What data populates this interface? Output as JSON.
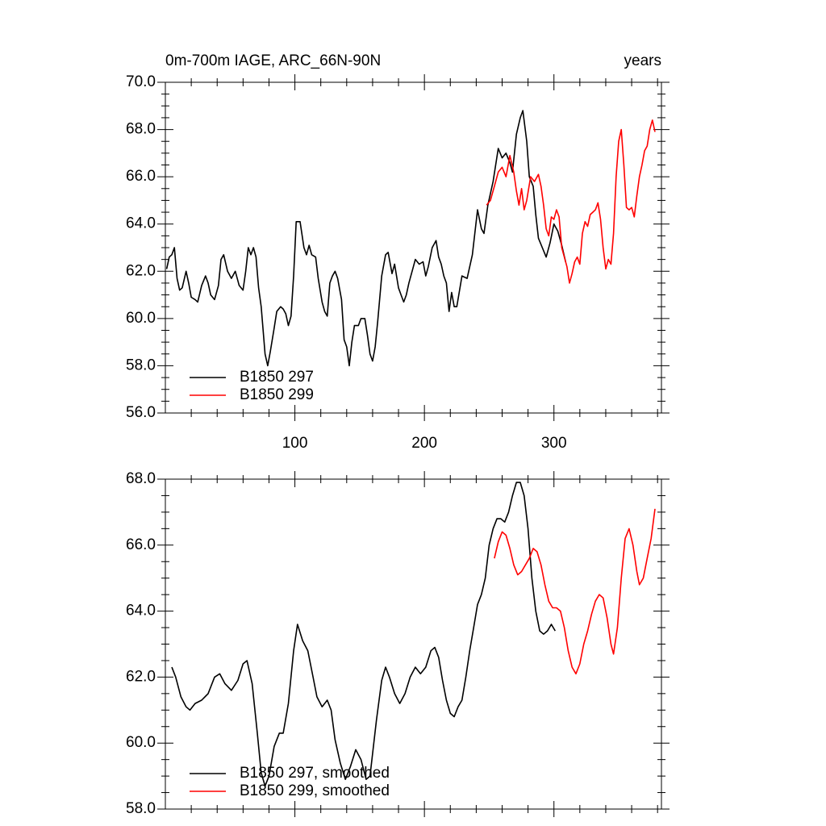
{
  "chart_data": [
    {
      "type": "line",
      "title": "0m-700m IAGE, ARC_66N-90N",
      "units": "years",
      "xlim": [
        0,
        383
      ],
      "xticks": [
        100,
        200,
        300
      ],
      "ylim": [
        56,
        70
      ],
      "yticks": [
        {
          "value": 56,
          "label": "56.0"
        },
        {
          "value": 58,
          "label": "58.0"
        },
        {
          "value": 60,
          "label": "60.0"
        },
        {
          "value": 62,
          "label": "62.0"
        },
        {
          "value": 64,
          "label": "64.0"
        },
        {
          "value": 66,
          "label": "66.0"
        },
        {
          "value": 68,
          "label": "68.0"
        },
        {
          "value": 70,
          "label": "70.0"
        }
      ],
      "legend": "lower left",
      "series": [
        {
          "name": "B1850 297",
          "color": "#000000",
          "x": [
            1,
            3,
            5,
            7,
            9,
            11,
            13,
            16,
            18,
            20,
            23,
            25,
            28,
            31,
            33,
            35,
            38,
            41,
            43,
            45,
            48,
            51,
            54,
            57,
            60,
            62,
            64,
            66,
            68,
            70,
            72,
            74,
            77,
            79,
            81,
            84,
            86,
            89,
            91,
            93,
            95,
            97,
            99,
            101,
            104,
            107,
            109,
            111,
            113,
            116,
            118,
            121,
            123,
            125,
            127,
            129,
            131,
            133,
            136,
            138,
            140,
            142,
            144,
            146,
            149,
            151,
            154,
            156,
            158,
            160,
            162,
            164,
            167,
            170,
            172,
            175,
            177,
            180,
            182,
            184,
            186,
            188,
            191,
            193,
            196,
            199,
            201,
            203,
            206,
            209,
            211,
            213,
            215,
            217,
            219,
            221,
            223,
            225,
            229,
            233,
            237,
            241,
            244,
            246,
            249,
            253,
            257,
            260,
            263,
            266,
            268,
            271,
            274,
            276,
            279,
            281,
            284,
            286,
            288,
            291,
            294,
            297,
            300,
            303,
            306,
            309
          ],
          "values": [
            62.1,
            62.6,
            62.7,
            63.0,
            61.7,
            61.2,
            61.3,
            62.0,
            61.5,
            60.9,
            60.8,
            60.7,
            61.4,
            61.8,
            61.5,
            61.0,
            60.8,
            61.4,
            62.5,
            62.7,
            62.0,
            61.7,
            62.0,
            61.4,
            61.2,
            62.0,
            63.0,
            62.7,
            63.0,
            62.6,
            61.3,
            60.5,
            58.5,
            58.0,
            58.6,
            59.6,
            60.3,
            60.5,
            60.4,
            60.2,
            59.7,
            60.1,
            61.8,
            64.1,
            64.1,
            63.0,
            62.7,
            63.1,
            62.7,
            62.6,
            61.7,
            60.7,
            60.3,
            60.1,
            61.5,
            61.8,
            62.0,
            61.7,
            60.8,
            59.1,
            58.8,
            58.0,
            59.0,
            59.7,
            59.7,
            60.0,
            60.0,
            59.3,
            58.5,
            58.2,
            58.8,
            59.9,
            61.8,
            62.7,
            62.8,
            61.9,
            62.3,
            61.3,
            61.0,
            60.7,
            61.0,
            61.5,
            62.1,
            62.5,
            62.3,
            62.4,
            61.8,
            62.2,
            63.0,
            63.3,
            62.6,
            62.3,
            61.8,
            61.5,
            60.3,
            61.1,
            60.5,
            60.5,
            61.8,
            61.7,
            62.7,
            64.6,
            63.8,
            63.6,
            64.8,
            65.8,
            67.2,
            66.8,
            67.0,
            66.6,
            66.2,
            67.8,
            68.5,
            68.8,
            67.5,
            66.0,
            65.6,
            64.4,
            63.4,
            63.0,
            62.6,
            63.2,
            64.0,
            63.7,
            63.1,
            62.4
          ]
        },
        {
          "name": "B1850 299",
          "color": "#ff0000",
          "x": [
            248,
            251,
            254,
            257,
            260,
            263,
            266,
            269,
            271,
            273,
            275,
            277,
            279,
            282,
            285,
            288,
            290,
            292,
            294,
            296,
            298,
            300,
            302,
            304,
            306,
            308,
            310,
            312,
            314,
            316,
            318,
            320,
            322,
            324,
            326,
            328,
            330,
            332,
            334,
            336,
            338,
            340,
            342,
            344,
            346,
            348,
            350,
            352,
            354,
            356,
            358,
            360,
            362,
            364,
            366,
            368,
            370,
            372,
            374,
            376,
            378
          ],
          "values": [
            64.8,
            65.0,
            65.6,
            66.2,
            66.4,
            66.0,
            66.9,
            66.2,
            65.4,
            64.8,
            65.5,
            64.6,
            65.0,
            66.0,
            65.8,
            66.1,
            65.6,
            64.8,
            63.8,
            63.5,
            64.3,
            64.2,
            64.6,
            64.3,
            63.0,
            62.6,
            62.2,
            61.5,
            61.9,
            62.4,
            62.6,
            62.3,
            63.6,
            64.1,
            63.9,
            64.4,
            64.5,
            64.6,
            64.9,
            64.2,
            63.0,
            62.1,
            62.5,
            62.3,
            63.6,
            66.0,
            67.5,
            68.0,
            66.5,
            64.7,
            64.6,
            64.7,
            64.3,
            65.2,
            66.0,
            66.5,
            67.1,
            67.3,
            68.0,
            68.4,
            67.9
          ]
        }
      ]
    },
    {
      "type": "line",
      "xlim": [
        0,
        383
      ],
      "ylim": [
        58,
        68
      ],
      "yticks": [
        {
          "value": 58,
          "label": "58.0"
        },
        {
          "value": 60,
          "label": "60.0"
        },
        {
          "value": 62,
          "label": "62.0"
        },
        {
          "value": 64,
          "label": "64.0"
        },
        {
          "value": 66,
          "label": "66.0"
        },
        {
          "value": 68,
          "label": "68.0"
        }
      ],
      "legend": "lower left",
      "series": [
        {
          "name": "B1850 297, smoothed",
          "color": "#000000",
          "x": [
            5,
            8,
            12,
            16,
            19,
            23,
            28,
            33,
            38,
            42,
            46,
            51,
            56,
            60,
            63,
            67,
            71,
            74,
            77,
            80,
            84,
            88,
            91,
            95,
            99,
            102,
            106,
            110,
            114,
            117,
            121,
            125,
            128,
            131,
            135,
            139,
            143,
            147,
            151,
            155,
            158,
            163,
            167,
            170,
            173,
            177,
            181,
            185,
            189,
            193,
            197,
            201,
            205,
            208,
            211,
            214,
            217,
            220,
            223,
            226,
            229,
            232,
            235,
            238,
            241,
            244,
            247,
            250,
            253,
            256,
            259,
            262,
            265,
            268,
            271,
            274,
            277,
            280,
            283,
            286,
            289,
            292,
            295,
            298,
            301
          ],
          "values": [
            62.3,
            62.0,
            61.4,
            61.1,
            61.0,
            61.2,
            61.3,
            61.5,
            62.0,
            62.1,
            61.8,
            61.6,
            61.9,
            62.4,
            62.5,
            61.8,
            60.3,
            59.1,
            58.7,
            59.0,
            59.9,
            60.3,
            60.3,
            61.2,
            62.8,
            63.6,
            63.1,
            62.8,
            62.0,
            61.4,
            61.1,
            61.3,
            61.0,
            60.1,
            59.4,
            58.9,
            59.3,
            59.8,
            59.5,
            58.9,
            59.0,
            60.7,
            61.9,
            62.3,
            62.0,
            61.5,
            61.2,
            61.5,
            62.0,
            62.3,
            62.1,
            62.3,
            62.8,
            62.9,
            62.6,
            61.9,
            61.3,
            60.9,
            60.8,
            61.1,
            61.3,
            62.0,
            62.8,
            63.5,
            64.2,
            64.5,
            65.0,
            66.0,
            66.5,
            66.8,
            66.8,
            66.7,
            67.0,
            67.5,
            67.9,
            67.9,
            67.5,
            66.5,
            65.0,
            64.0,
            63.4,
            63.3,
            63.4,
            63.6,
            63.4
          ]
        },
        {
          "name": "B1850 299, smoothed",
          "color": "#ff0000",
          "x": [
            254,
            257,
            260,
            263,
            266,
            269,
            272,
            275,
            278,
            281,
            284,
            287,
            290,
            293,
            296,
            299,
            302,
            305,
            308,
            311,
            314,
            317,
            320,
            323,
            326,
            329,
            332,
            335,
            338,
            341,
            344,
            346,
            349,
            352,
            355,
            358,
            361,
            364,
            366,
            369,
            372,
            375,
            378
          ],
          "values": [
            65.6,
            66.1,
            66.4,
            66.3,
            65.9,
            65.4,
            65.1,
            65.2,
            65.4,
            65.6,
            65.9,
            65.8,
            65.4,
            64.8,
            64.3,
            64.1,
            64.1,
            64.0,
            63.5,
            62.8,
            62.3,
            62.1,
            62.4,
            63.0,
            63.4,
            63.9,
            64.3,
            64.5,
            64.4,
            63.8,
            63.0,
            62.7,
            63.5,
            65.0,
            66.2,
            66.5,
            66.0,
            65.2,
            64.8,
            65.0,
            65.6,
            66.2,
            67.1
          ]
        }
      ]
    }
  ]
}
